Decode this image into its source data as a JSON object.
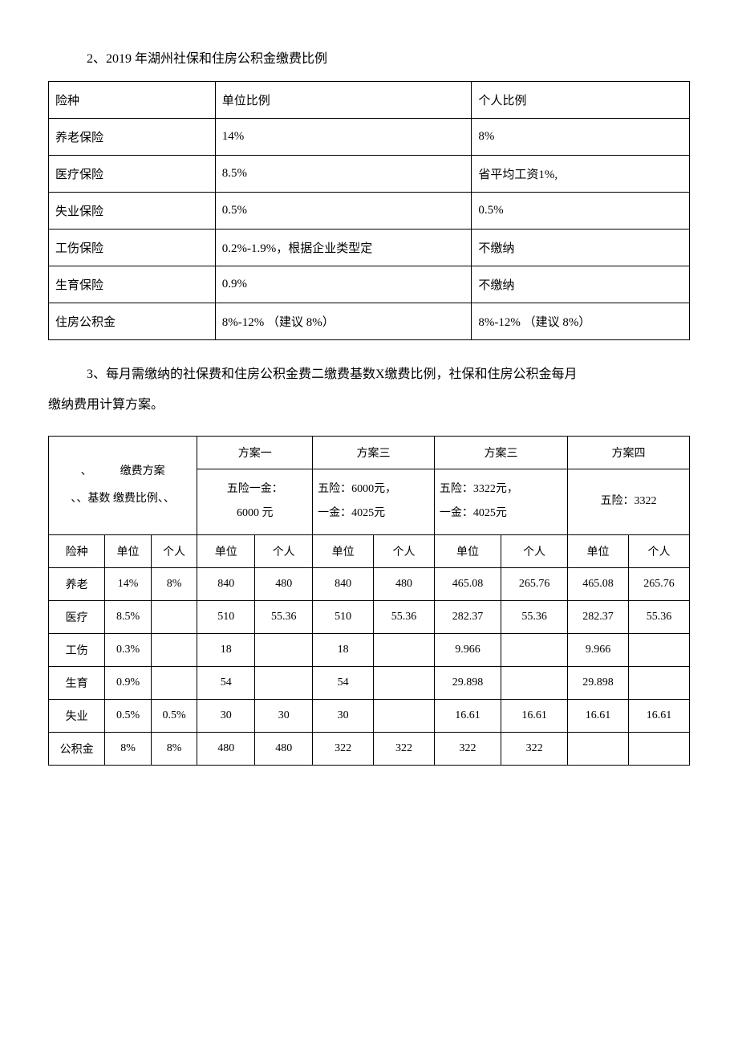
{
  "heading1": "2、2019 年湖州社保和住房公积金缴费比例",
  "table1": {
    "columns": [
      "险种",
      "单位比例",
      "个人比例"
    ],
    "rows": [
      [
        "养老保险",
        "14%",
        "8%"
      ],
      [
        "医疗保险",
        "8.5%",
        "省平均工资1%,"
      ],
      [
        "失业保险",
        "0.5%",
        "0.5%"
      ],
      [
        "工伤保险",
        "0.2%-1.9%，根据企业类型定",
        "不缴纳"
      ],
      [
        "生育保险",
        "0.9%",
        "不缴纳"
      ],
      [
        "住房公积金",
        "8%-12% （建议 8%）",
        "8%-12% （建议 8%）"
      ]
    ]
  },
  "para_line1": "3、每月需缴纳的社保费和住房公积金费二缴费基数X缴费比例，社保和住房公积金每月",
  "para_line2": "缴纳费用计算方案。",
  "table2": {
    "scheme_label_line1": "、　　　缴费方案",
    "scheme_label_line2": "、、基数 缴费比例、、",
    "plan_names": [
      "方案一",
      "方案三",
      "方案三",
      "方案四"
    ],
    "plan_descs": [
      "五险一金：\n6000 元",
      "五险：6000元，\n一金：4025元",
      "五险：3322元，\n一金：4025元",
      "五险：3322"
    ],
    "sub_headers_left": [
      "险种",
      "单位",
      "个人"
    ],
    "sub_headers_pair": [
      "单位",
      "个人"
    ],
    "rows": [
      [
        "养老",
        "14%",
        "8%",
        "840",
        "480",
        "840",
        "480",
        "465.08",
        "265.76",
        "465.08",
        "265.76"
      ],
      [
        "医疗",
        "8.5%",
        "",
        "510",
        "55.36",
        "510",
        "55.36",
        "282.37",
        "55.36",
        "282.37",
        "55.36"
      ],
      [
        "工伤",
        "0.3%",
        "",
        "18",
        "",
        "18",
        "",
        "9.966",
        "",
        "9.966",
        ""
      ],
      [
        "生育",
        "0.9%",
        "",
        "54",
        "",
        "54",
        "",
        "29.898",
        "",
        "29.898",
        ""
      ],
      [
        "失业",
        "0.5%",
        "0.5%",
        "30",
        "30",
        "30",
        "",
        "16.61",
        "16.61",
        "16.61",
        "16.61"
      ],
      [
        "公积金",
        "8%",
        "8%",
        "480",
        "480",
        "322",
        "322",
        "322",
        "322",
        "",
        ""
      ]
    ]
  }
}
